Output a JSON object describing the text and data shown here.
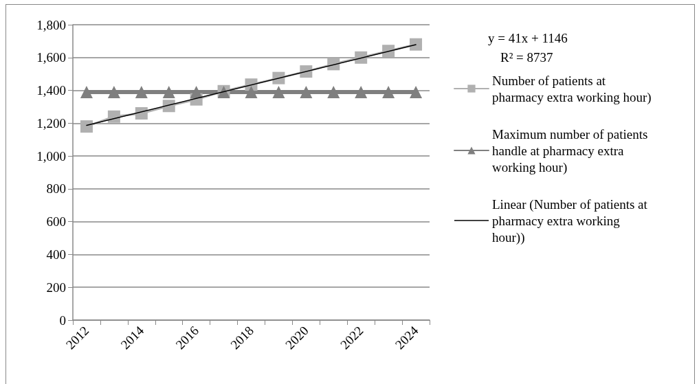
{
  "chart_data": {
    "type": "line",
    "categories": [
      "2012",
      null,
      "2014",
      null,
      "2016",
      null,
      "2018",
      null,
      "2020",
      null,
      "2022",
      null,
      "2024"
    ],
    "ylim": [
      0,
      1800
    ],
    "yticks": [
      0,
      200,
      400,
      600,
      800,
      {
        "value": 1000,
        "label": "1,000"
      },
      {
        "value": 1200,
        "label": "1,200"
      },
      {
        "value": 1400,
        "label": "1,400"
      },
      {
        "value": 1600,
        "label": "1,600"
      },
      {
        "value": 1800,
        "label": "1,800"
      }
    ],
    "grid": "y",
    "legend": "right",
    "annotations": [
      "y = 41x + 1146",
      "R² = 8737"
    ],
    "series": [
      {
        "name": "Number of patients at pharmacy extra working hour)",
        "color": "#b0b0b0",
        "marker": "square",
        "values": [
          1180,
          1240,
          1260,
          1305,
          1345,
          1395,
          1435,
          1475,
          1515,
          1560,
          1600,
          1640,
          1680
        ]
      },
      {
        "name": "Maximum number of patients handle at pharmacy extra working hour)",
        "color": "#7f7f7f",
        "marker": "triangle",
        "values": [
          1390,
          1390,
          1390,
          1390,
          1390,
          1390,
          1390,
          1390,
          1390,
          1390,
          1390,
          1390,
          1390
        ]
      },
      {
        "name": "Linear (Number of patients at pharmacy extra working hour))",
        "color": "#000000",
        "marker": "none",
        "values": [
          1187,
          null,
          null,
          null,
          null,
          null,
          null,
          null,
          null,
          null,
          null,
          null,
          1679
        ]
      }
    ]
  }
}
